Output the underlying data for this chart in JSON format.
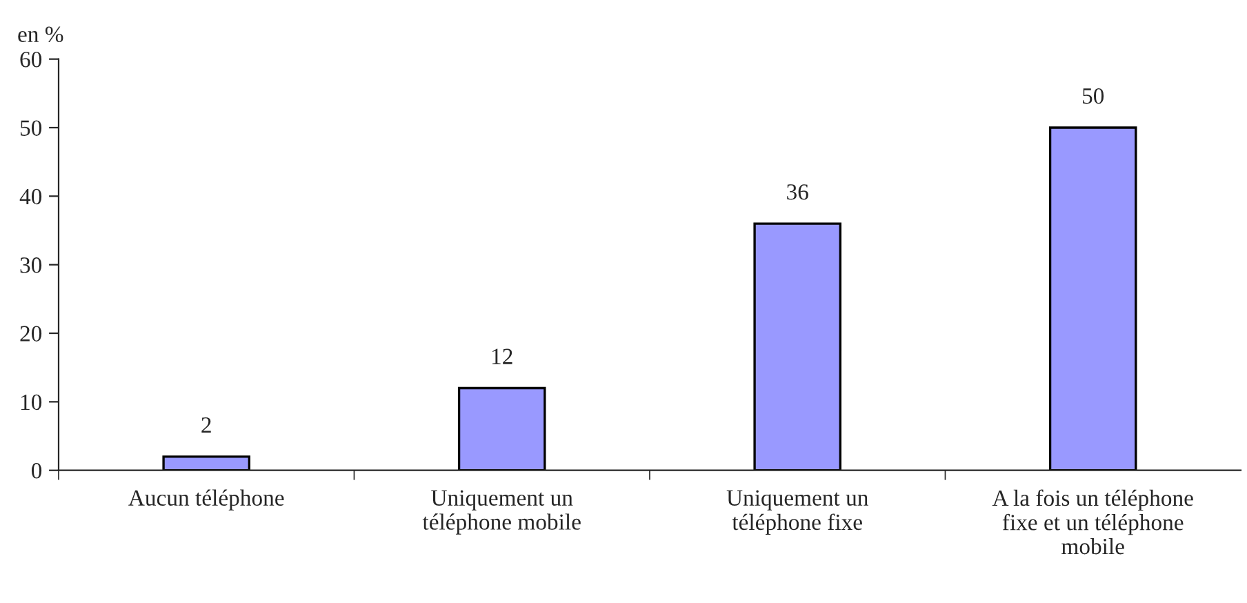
{
  "chart_data": {
    "type": "bar",
    "ylabel": "en %",
    "categories": [
      "Aucun téléphone",
      "Uniquement un\ntéléphone mobile",
      "Uniquement un\ntéléphone fixe",
      "A la fois un téléphone\nfixe et un téléphone\nmobile"
    ],
    "values": [
      2,
      12,
      36,
      50
    ],
    "color": "#9999ff",
    "data_labels": true,
    "ylim": [
      0,
      60
    ],
    "yticks": [
      0,
      10,
      20,
      30,
      40,
      50,
      60
    ],
    "grid": false,
    "legend": false
  }
}
